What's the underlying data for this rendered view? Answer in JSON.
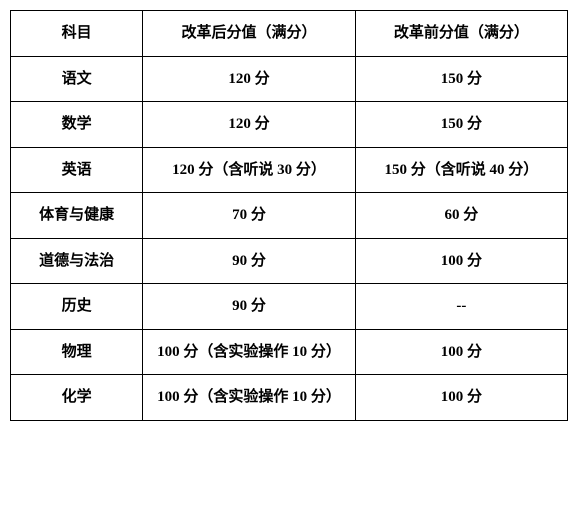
{
  "table": {
    "columns": [
      "科目",
      "改革后分值（满分）",
      "改革前分值（满分）"
    ],
    "rows": [
      [
        "语文",
        "120 分",
        "150 分"
      ],
      [
        "数学",
        "120 分",
        "150 分"
      ],
      [
        "英语",
        "120 分（含听说 30 分）",
        "150 分（含听说 40 分）"
      ],
      [
        "体育与健康",
        "70 分",
        "60 分"
      ],
      [
        "道德与法治",
        "90 分",
        "100 分"
      ],
      [
        "历史",
        "90 分",
        "--"
      ],
      [
        "物理",
        "100 分（含实验操作 10 分）",
        "100 分"
      ],
      [
        "化学",
        "100 分（含实验操作 10 分）",
        "100 分"
      ]
    ],
    "border_color": "#000000",
    "background_color": "#ffffff",
    "text_color": "#000000",
    "font_size": 15,
    "font_weight": "bold"
  }
}
